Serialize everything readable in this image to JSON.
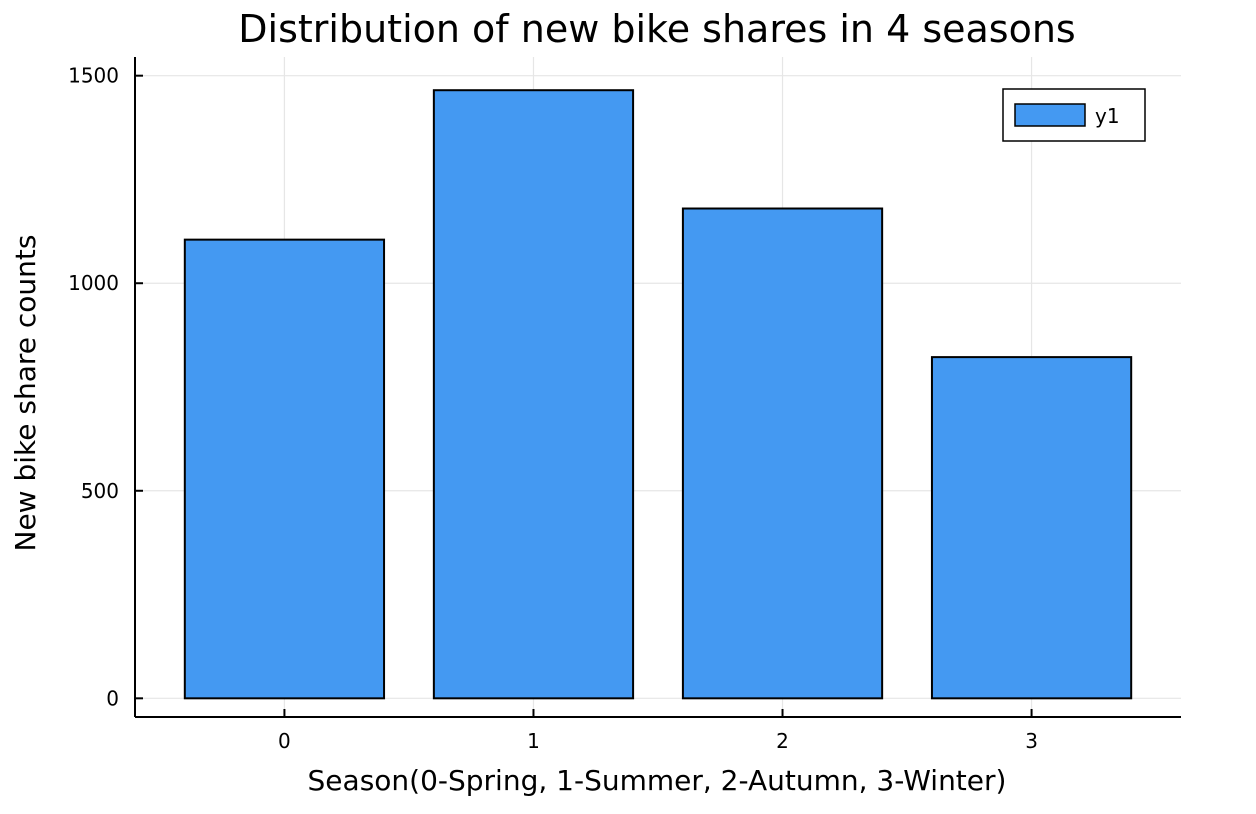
{
  "chart_data": {
    "type": "bar",
    "title": "Distribution of new bike shares in 4 seasons",
    "xlabel": "Season(0-Spring, 1-Summer, 2-Autumn, 3-Winter)",
    "ylabel": "New bike share counts",
    "categories": [
      "0",
      "1",
      "2",
      "3"
    ],
    "series": [
      {
        "name": "y1",
        "values": [
          1105,
          1465,
          1180,
          822
        ],
        "color": "#4499f2"
      }
    ],
    "ylim": [
      -45,
      1545
    ],
    "xlim": [
      -0.6,
      3.6
    ],
    "yticks": [
      0,
      500,
      1000,
      1500
    ],
    "yticklabels": [
      "0",
      "500",
      "1000",
      "1500"
    ],
    "grid": true,
    "legend": "top-right"
  }
}
